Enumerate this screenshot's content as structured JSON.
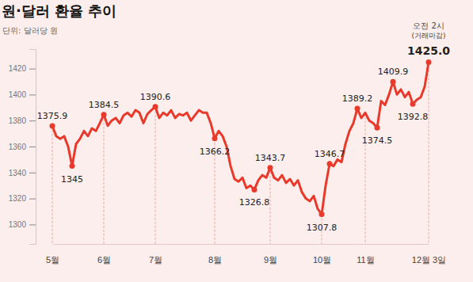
{
  "chart_data": {
    "type": "line",
    "title": "원·달러 환율 추이",
    "subtitle": "단위: 달러당 원",
    "annotations": [
      "오전 2시",
      "(거래마감)"
    ],
    "categories": [
      "5월",
      null,
      null,
      null,
      null,
      null,
      null,
      null,
      null,
      null,
      null,
      null,
      null,
      "6월",
      null,
      null,
      null,
      null,
      null,
      null,
      null,
      null,
      null,
      null,
      null,
      null,
      "7월",
      null,
      null,
      null,
      null,
      null,
      null,
      null,
      null,
      null,
      null,
      null,
      null,
      null,
      null,
      "8월",
      null,
      null,
      null,
      null,
      null,
      null,
      null,
      null,
      null,
      null,
      null,
      null,
      null,
      "9월",
      null,
      null,
      null,
      null,
      null,
      null,
      null,
      null,
      null,
      null,
      null,
      null,
      "10월",
      null,
      null,
      null,
      null,
      null,
      null,
      null,
      null,
      null,
      null,
      "11월",
      null,
      null,
      null,
      null,
      null,
      null,
      null,
      null,
      null,
      null,
      null,
      null,
      null,
      null,
      null,
      "12월 3일"
    ],
    "values": [
      1375.9,
      1368,
      1366,
      1368,
      1360,
      1345,
      1362,
      1366,
      1372,
      1368,
      1374,
      1372,
      1378,
      1384.5,
      1376,
      1380,
      1382,
      1378,
      1384,
      1386,
      1383,
      1388,
      1386,
      1378,
      1385,
      1388,
      1390.6,
      1382,
      1386,
      1384,
      1388,
      1382,
      1385,
      1384,
      1386,
      1380,
      1384,
      1388,
      1386,
      1386,
      1378,
      1366.2,
      1372,
      1368,
      1360,
      1345,
      1335,
      1333,
      1336,
      1328,
      1330,
      1326.8,
      1334,
      1338,
      1336,
      1343.7,
      1336,
      1334,
      1338,
      1332,
      1335,
      1330,
      1334,
      1325,
      1320,
      1318,
      1322,
      1312,
      1307.8,
      1330,
      1346.7,
      1345,
      1350,
      1348,
      1362,
      1372,
      1378,
      1389.2,
      1382,
      1386,
      1380,
      1378,
      1374.5,
      1395,
      1392,
      1400,
      1409.9,
      1400,
      1404,
      1398,
      1402,
      1392.8,
      1396,
      1398,
      1406,
      1425.0
    ],
    "value_labels": [
      "1375.9",
      null,
      null,
      null,
      null,
      "1345",
      null,
      null,
      null,
      null,
      null,
      null,
      null,
      "1384.5",
      null,
      null,
      null,
      null,
      null,
      null,
      null,
      null,
      null,
      null,
      null,
      null,
      "1390.6",
      null,
      null,
      null,
      null,
      null,
      null,
      null,
      null,
      null,
      null,
      null,
      null,
      null,
      null,
      "1366.2",
      null,
      null,
      null,
      null,
      null,
      null,
      null,
      null,
      null,
      "1326.8",
      null,
      null,
      null,
      "1343.7",
      null,
      null,
      null,
      null,
      null,
      null,
      null,
      null,
      null,
      null,
      null,
      null,
      "1307.8",
      null,
      "1346.7",
      null,
      null,
      null,
      null,
      null,
      null,
      "1389.2",
      null,
      null,
      null,
      null,
      "1374.5",
      null,
      null,
      null,
      "1409.9",
      null,
      null,
      null,
      null,
      "1392.8",
      null,
      null,
      null,
      "1425.0"
    ],
    "data_labels": true,
    "marker": "circle",
    "color": "#e8392b",
    "ylim": [
      1285,
      1435
    ],
    "yticks": [
      1300,
      1320,
      1340,
      1360,
      1380,
      1400,
      1420
    ]
  }
}
